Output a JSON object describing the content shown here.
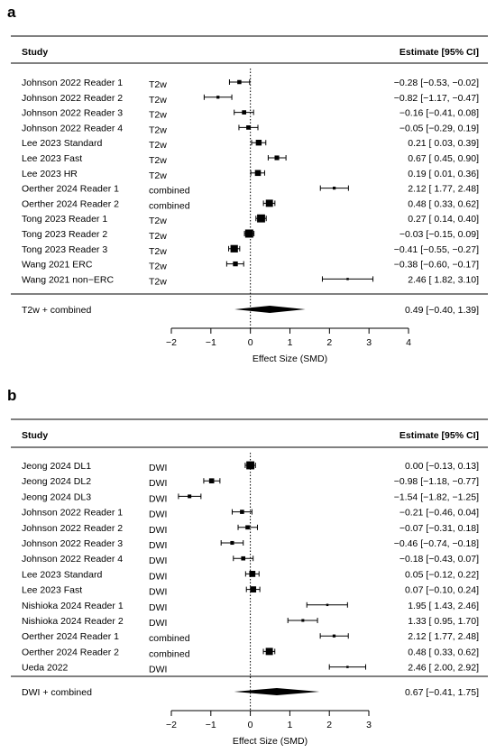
{
  "chart_data": [
    {
      "type": "forest",
      "panel_label": "a",
      "header_study": "Study",
      "header_estimate": "Estimate [95% CI]",
      "xlabel": "Effect Size (SMD)",
      "xlim": [
        -2,
        4
      ],
      "ticks": [
        "−2",
        "−1",
        "0",
        "1",
        "2",
        "3",
        "4"
      ],
      "tick_values": [
        -2,
        -1,
        0,
        1,
        2,
        3,
        4
      ],
      "reference_line": 0,
      "studies": [
        {
          "study": "Johnson 2022 Reader 1",
          "sequence": "T2w",
          "est": -0.28,
          "lo": -0.53,
          "hi": -0.02,
          "text": "−0.28 [−0.53, −0.02]"
        },
        {
          "study": "Johnson 2022 Reader 2",
          "sequence": "T2w",
          "est": -0.82,
          "lo": -1.17,
          "hi": -0.47,
          "text": "−0.82 [−1.17, −0.47]"
        },
        {
          "study": "Johnson 2022 Reader 3",
          "sequence": "T2w",
          "est": -0.16,
          "lo": -0.41,
          "hi": 0.08,
          "text": "−0.16 [−0.41,  0.08]"
        },
        {
          "study": "Johnson 2022 Reader 4",
          "sequence": "T2w",
          "est": -0.05,
          "lo": -0.29,
          "hi": 0.19,
          "text": "−0.05 [−0.29,  0.19]"
        },
        {
          "study": "Lee 2023 Standard",
          "sequence": "T2w",
          "est": 0.21,
          "lo": 0.03,
          "hi": 0.39,
          "text": "0.21 [ 0.03,  0.39]"
        },
        {
          "study": "Lee 2023 Fast",
          "sequence": "T2w",
          "est": 0.67,
          "lo": 0.45,
          "hi": 0.9,
          "text": "0.67 [ 0.45,  0.90]"
        },
        {
          "study": "Lee 2023 HR",
          "sequence": "T2w",
          "est": 0.19,
          "lo": 0.01,
          "hi": 0.36,
          "text": "0.19 [ 0.01,  0.36]"
        },
        {
          "study": "Oerther 2024 Reader 1",
          "sequence": "combined",
          "est": 2.12,
          "lo": 1.77,
          "hi": 2.48,
          "text": "2.12 [ 1.77,  2.48]"
        },
        {
          "study": "Oerther 2024 Reader 2",
          "sequence": "combined",
          "est": 0.48,
          "lo": 0.33,
          "hi": 0.62,
          "text": "0.48 [ 0.33,  0.62]"
        },
        {
          "study": "Tong 2023 Reader 1",
          "sequence": "T2w",
          "est": 0.27,
          "lo": 0.14,
          "hi": 0.4,
          "text": "0.27 [ 0.14,  0.40]"
        },
        {
          "study": "Tong 2023 Reader 2",
          "sequence": "T2w",
          "est": -0.03,
          "lo": -0.15,
          "hi": 0.09,
          "text": "−0.03 [−0.15,  0.09]"
        },
        {
          "study": "Tong 2023 Reader 3",
          "sequence": "T2w",
          "est": -0.41,
          "lo": -0.55,
          "hi": -0.27,
          "text": "−0.41 [−0.55, −0.27]"
        },
        {
          "study": "Wang 2021 ERC",
          "sequence": "T2w",
          "est": -0.38,
          "lo": -0.6,
          "hi": -0.17,
          "text": "−0.38 [−0.60, −0.17]"
        },
        {
          "study": "Wang 2021 non−ERC",
          "sequence": "T2w",
          "est": 2.46,
          "lo": 1.82,
          "hi": 3.1,
          "text": "2.46 [ 1.82,  3.10]"
        }
      ],
      "summary": {
        "label": "T2w + combined",
        "est": 0.49,
        "lo": -0.4,
        "hi": 1.39,
        "text": "0.49 [−0.40,  1.39]"
      }
    },
    {
      "type": "forest",
      "panel_label": "b",
      "header_study": "Study",
      "header_estimate": "Estimate [95% CI]",
      "xlabel": "Effect Size (SMD)",
      "xlim": [
        -2,
        3
      ],
      "ticks": [
        "−2",
        "−1",
        "0",
        "1",
        "2",
        "3"
      ],
      "tick_values": [
        -2,
        -1,
        0,
        1,
        2,
        3
      ],
      "reference_line": 0,
      "studies": [
        {
          "study": "Jeong 2024 DL1",
          "sequence": "DWI",
          "est": 0.0,
          "lo": -0.13,
          "hi": 0.13,
          "text": "0.00 [−0.13,  0.13]"
        },
        {
          "study": "Jeong 2024 DL2",
          "sequence": "DWI",
          "est": -0.98,
          "lo": -1.18,
          "hi": -0.77,
          "text": "−0.98 [−1.18, −0.77]"
        },
        {
          "study": "Jeong 2024 DL3",
          "sequence": "DWI",
          "est": -1.54,
          "lo": -1.82,
          "hi": -1.25,
          "text": "−1.54 [−1.82, −1.25]"
        },
        {
          "study": "Johnson 2022 Reader 1",
          "sequence": "DWI",
          "est": -0.21,
          "lo": -0.46,
          "hi": 0.04,
          "text": "−0.21 [−0.46,  0.04]"
        },
        {
          "study": "Johnson 2022 Reader 2",
          "sequence": "DWI",
          "est": -0.07,
          "lo": -0.31,
          "hi": 0.18,
          "text": "−0.07 [−0.31,  0.18]"
        },
        {
          "study": "Johnson 2022 Reader 3",
          "sequence": "DWI",
          "est": -0.46,
          "lo": -0.74,
          "hi": -0.18,
          "text": "−0.46 [−0.74, −0.18]"
        },
        {
          "study": "Johnson 2022 Reader 4",
          "sequence": "DWI",
          "est": -0.18,
          "lo": -0.43,
          "hi": 0.07,
          "text": "−0.18 [−0.43,  0.07]"
        },
        {
          "study": "Lee 2023 Standard",
          "sequence": "DWI",
          "est": 0.05,
          "lo": -0.12,
          "hi": 0.22,
          "text": "0.05 [−0.12,  0.22]"
        },
        {
          "study": "Lee 2023 Fast",
          "sequence": "DWI",
          "est": 0.07,
          "lo": -0.1,
          "hi": 0.24,
          "text": "0.07 [−0.10,  0.24]"
        },
        {
          "study": "Nishioka 2024 Reader 1",
          "sequence": "DWI",
          "est": 1.95,
          "lo": 1.43,
          "hi": 2.46,
          "text": "1.95 [ 1.43,  2.46]"
        },
        {
          "study": "Nishioka 2024 Reader 2",
          "sequence": "DWI",
          "est": 1.33,
          "lo": 0.95,
          "hi": 1.7,
          "text": "1.33 [ 0.95,  1.70]"
        },
        {
          "study": "Oerther 2024 Reader 1",
          "sequence": "combined",
          "est": 2.12,
          "lo": 1.77,
          "hi": 2.48,
          "text": "2.12 [ 1.77,  2.48]"
        },
        {
          "study": "Oerther 2024 Reader 2",
          "sequence": "combined",
          "est": 0.48,
          "lo": 0.33,
          "hi": 0.62,
          "text": "0.48 [ 0.33,  0.62]"
        },
        {
          "study": "Ueda 2022",
          "sequence": "DWI",
          "est": 2.46,
          "lo": 2.0,
          "hi": 2.92,
          "text": "2.46 [ 2.00,  2.92]"
        }
      ],
      "summary": {
        "label": "DWI + combined",
        "est": 0.67,
        "lo": -0.41,
        "hi": 1.75,
        "text": "0.67 [−0.41,  1.75]"
      }
    }
  ]
}
